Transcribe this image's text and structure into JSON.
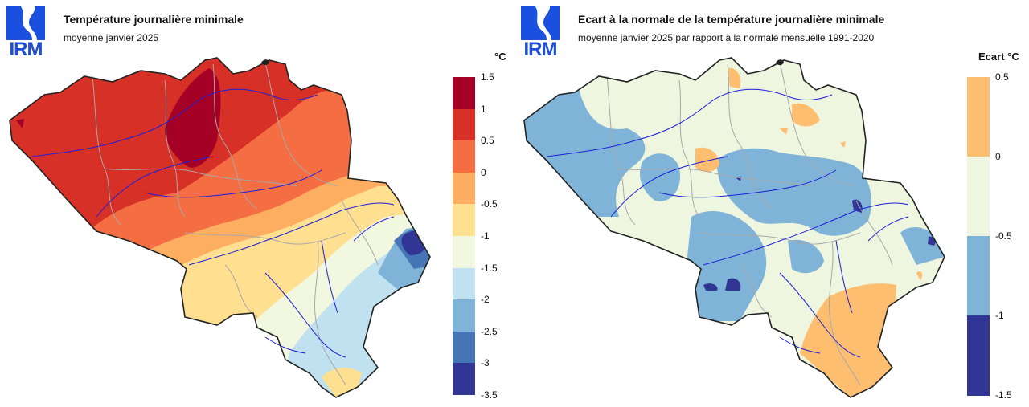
{
  "logo": {
    "text": "IRM",
    "color": "#1a4fe0"
  },
  "left_panel": {
    "title": "Température journalière minimale",
    "subtitle": "moyenne janvier 2025",
    "legend": {
      "unit": "°C",
      "ticks": [
        "1.5",
        "1",
        "0.5",
        "0",
        "-0.5",
        "-1",
        "-1.5",
        "-2",
        "-2.5",
        "-3",
        "-3.5"
      ],
      "colors": [
        "#a50026",
        "#d73027",
        "#f46d43",
        "#fdae61",
        "#fee090",
        "#f2f7df",
        "#bfe1f0",
        "#7fb4d8",
        "#4575b4",
        "#313695"
      ]
    }
  },
  "right_panel": {
    "title": "Ecart à la normale de la température journalière minimale",
    "subtitle": "moyenne janvier 2025 par rapport à la normale mensuelle 1991-2020",
    "legend": {
      "unit": "Ecart °C",
      "ticks": [
        "0.5",
        "0",
        "-0.5",
        "-1",
        "-1.5"
      ],
      "colors": [
        "#fdbf6f",
        "#eef6df",
        "#7fb4d8",
        "#313695"
      ]
    }
  }
}
